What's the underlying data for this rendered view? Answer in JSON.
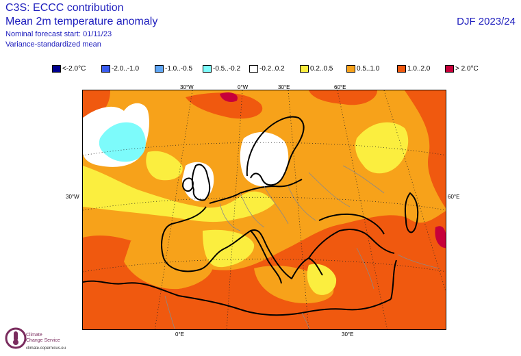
{
  "header": {
    "line1": "C3S: ECCC contribution",
    "line2": "Mean 2m temperature anomaly",
    "line3": "Nominal forecast start: 01/11/23",
    "line4": "Variance-standardized mean",
    "season": "DJF 2023/24"
  },
  "legend": [
    {
      "label": "<-2.0°C",
      "color": "#00008f"
    },
    {
      "label": "-2.0..-1.0",
      "color": "#3a5cf0"
    },
    {
      "label": "-1.0..-0.5",
      "color": "#5fa6f5"
    },
    {
      "label": "-0.5..-0.2",
      "color": "#7dfbfb"
    },
    {
      "label": "-0.2..0.2",
      "color": "#ffffff"
    },
    {
      "label": "0.2..0.5",
      "color": "#fbee3f"
    },
    {
      "label": "0.5..1.0",
      "color": "#f7a21a"
    },
    {
      "label": "1.0..2.0",
      "color": "#f0590f"
    },
    {
      "label": "> 2.0°C",
      "color": "#c7003a"
    }
  ],
  "map": {
    "top_labels": [
      "30°W",
      "0°W",
      "30°E",
      "60°E"
    ],
    "left_label": "30°W",
    "right_label": "60°E",
    "bottom_labels": [
      "0°E",
      "30°E"
    ]
  },
  "logo": {
    "name_line1": "Climate",
    "name_line2": "Change Service",
    "url": "climate.copernicus.eu"
  }
}
